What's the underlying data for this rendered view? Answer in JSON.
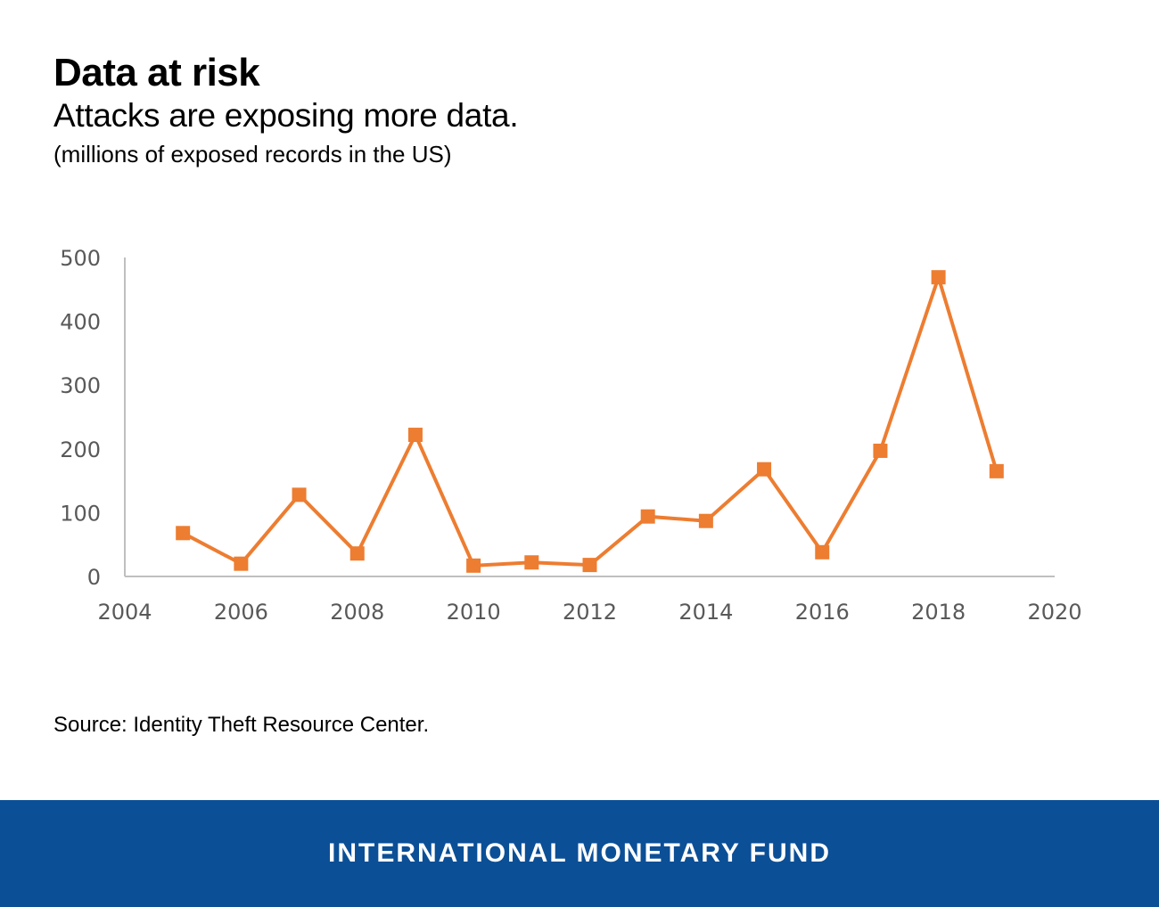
{
  "header": {
    "title": "Data at risk",
    "subtitle": "Attacks are exposing more data.",
    "unit_note": "(millions of exposed records in the US)"
  },
  "source": "Source: Identity Theft Resource Center.",
  "footer": {
    "label": "INTERNATIONAL MONETARY FUND",
    "background": "#0b4f96"
  },
  "chart_data": {
    "type": "line",
    "title": "Data at risk",
    "subtitle": "Attacks are exposing more data.",
    "xlabel": "",
    "ylabel": "millions of exposed records in the US",
    "x": [
      2005,
      2006,
      2007,
      2008,
      2009,
      2010,
      2011,
      2012,
      2013,
      2014,
      2015,
      2016,
      2017,
      2018,
      2019
    ],
    "series": [
      {
        "name": "Exposed records (millions)",
        "color": "#ed7d31",
        "marker": "square",
        "values": [
          68,
          20,
          128,
          36,
          222,
          17,
          22,
          18,
          94,
          87,
          168,
          38,
          197,
          469,
          165
        ]
      }
    ],
    "xlim": [
      2004,
      2020
    ],
    "ylim": [
      0,
      500
    ],
    "xticks": [
      2004,
      2006,
      2008,
      2010,
      2012,
      2014,
      2016,
      2018,
      2020
    ],
    "yticks": [
      0,
      100,
      200,
      300,
      400,
      500
    ],
    "grid": false,
    "legend": "none",
    "axis_color": "#bfbfbf",
    "tick_label_color": "#595959"
  }
}
